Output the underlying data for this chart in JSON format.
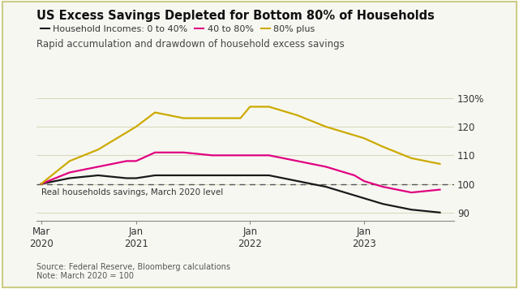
{
  "title": "US Excess Savings Depleted for Bottom 80% of Households",
  "subtitle": "Rapid accumulation and drawdown of household excess savings",
  "source_note": "Source: Federal Reserve, Bloomberg calculations\nNote: March 2020 = 100",
  "legend_labels": [
    "Household Incomes: 0 to 40%",
    "40 to 80%",
    "80% plus"
  ],
  "legend_colors": [
    "#1a1a1a",
    "#e0007f",
    "#ccaa00"
  ],
  "ref_line_value": 100,
  "ref_line_label": "Real households savings, March 2020 level",
  "ylim": [
    87,
    134
  ],
  "yticks": [
    90,
    100,
    110,
    120,
    130
  ],
  "ytick_labels": [
    "90",
    "100",
    "110",
    "120",
    "130%"
  ],
  "background_color": "#f7f7f2",
  "x_numeric": [
    0,
    3,
    6,
    9,
    10,
    12,
    15,
    18,
    21,
    22,
    24,
    27,
    30,
    33,
    34,
    36,
    39,
    42
  ],
  "line_0to40": [
    100,
    102,
    103,
    102,
    102,
    103,
    103,
    103,
    103,
    103,
    103,
    101,
    99,
    96,
    95,
    93,
    91,
    90
  ],
  "line_40to80": [
    100,
    104,
    106,
    108,
    108,
    111,
    111,
    110,
    110,
    110,
    110,
    108,
    106,
    103,
    101,
    99,
    97,
    98
  ],
  "line_80plus": [
    100,
    108,
    112,
    118,
    120,
    125,
    123,
    123,
    123,
    127,
    127,
    124,
    120,
    117,
    116,
    113,
    109,
    107
  ],
  "grid_color": "#c8c8a0",
  "grid_alpha": 0.8,
  "line_width": 1.6,
  "border_color": "#cccc88"
}
